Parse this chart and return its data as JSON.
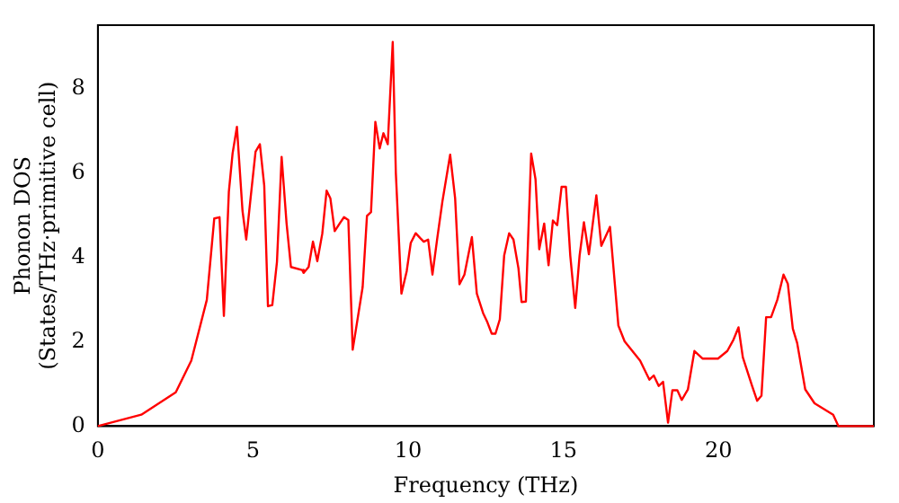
{
  "chart_data": {
    "type": "line",
    "xlabel": "Frequency (THz)",
    "ylabel": "Phonon DOS\n(States/THz·primitive cell)",
    "xlim": [
      0,
      25
    ],
    "xticks": [
      0,
      5,
      10,
      15,
      20
    ],
    "ylim": [
      0,
      9.5
    ],
    "yticks": [
      0,
      2,
      4,
      6,
      8
    ],
    "grid": false,
    "legend": false,
    "x": [
      0,
      1.4,
      2.51,
      3.01,
      3.51,
      3.75,
      3.92,
      4.06,
      4.22,
      4.34,
      4.48,
      4.66,
      4.78,
      4.92,
      5.08,
      5.22,
      5.36,
      5.48,
      5.62,
      5.77,
      5.92,
      6.08,
      6.22,
      6.58,
      6.63,
      6.79,
      6.93,
      7.07,
      7.23,
      7.37,
      7.49,
      7.63,
      7.79,
      7.93,
      8.07,
      8.21,
      8.53,
      8.67,
      8.8,
      8.94,
      9.08,
      9.2,
      9.34,
      9.5,
      9.6,
      9.78,
      9.95,
      10.08,
      10.24,
      10.38,
      10.5,
      10.64,
      10.78,
      10.94,
      11.1,
      11.35,
      11.51,
      11.65,
      11.81,
      12.05,
      12.21,
      12.41,
      12.55,
      12.69,
      12.81,
      12.95,
      13.09,
      13.25,
      13.39,
      13.55,
      13.65,
      13.79,
      13.96,
      14.1,
      14.22,
      14.38,
      14.52,
      14.66,
      14.8,
      14.94,
      15.08,
      15.22,
      15.38,
      15.52,
      15.66,
      15.82,
      16.06,
      16.22,
      16.5,
      16.77,
      16.97,
      17.47,
      17.77,
      17.91,
      18.07,
      18.21,
      18.37,
      18.51,
      18.67,
      18.81,
      19.01,
      19.22,
      19.48,
      19.98,
      20.28,
      20.48,
      20.64,
      20.78,
      21.08,
      21.24,
      21.38,
      21.53,
      21.69,
      21.89,
      22.09,
      22.23,
      22.39,
      22.53,
      22.79,
      23.09,
      23.69,
      23.86,
      25
    ],
    "series": [
      {
        "color": "#ff0000",
        "values": [
          0,
          0.27,
          0.8,
          1.55,
          2.99,
          4.92,
          4.95,
          2.61,
          5.55,
          6.46,
          7.09,
          5.1,
          4.42,
          5.4,
          6.5,
          6.68,
          5.7,
          2.84,
          2.87,
          3.89,
          6.38,
          4.8,
          3.77,
          3.7,
          3.63,
          3.77,
          4.37,
          3.91,
          4.56,
          5.58,
          5.4,
          4.62,
          4.8,
          4.95,
          4.88,
          1.81,
          3.29,
          4.98,
          5.07,
          7.21,
          6.58,
          6.94,
          6.68,
          9.1,
          6.0,
          3.14,
          3.67,
          4.34,
          4.57,
          4.46,
          4.37,
          4.42,
          3.59,
          4.48,
          5.32,
          6.43,
          5.4,
          3.36,
          3.59,
          4.48,
          3.14,
          2.68,
          2.46,
          2.19,
          2.19,
          2.53,
          4.04,
          4.57,
          4.42,
          3.74,
          2.94,
          2.95,
          6.46,
          5.85,
          4.19,
          4.8,
          3.81,
          4.87,
          4.76,
          5.67,
          5.67,
          4.04,
          2.8,
          4.04,
          4.83,
          4.07,
          5.47,
          4.27,
          4.72,
          2.38,
          2.01,
          1.55,
          1.1,
          1.2,
          0.95,
          1.05,
          0.08,
          0.85,
          0.85,
          0.62,
          0.87,
          1.78,
          1.6,
          1.6,
          1.78,
          2.05,
          2.34,
          1.63,
          0.95,
          0.6,
          0.72,
          2.58,
          2.58,
          2.99,
          3.59,
          3.37,
          2.31,
          1.97,
          0.87,
          0.54,
          0.27,
          0,
          0
        ]
      }
    ]
  }
}
